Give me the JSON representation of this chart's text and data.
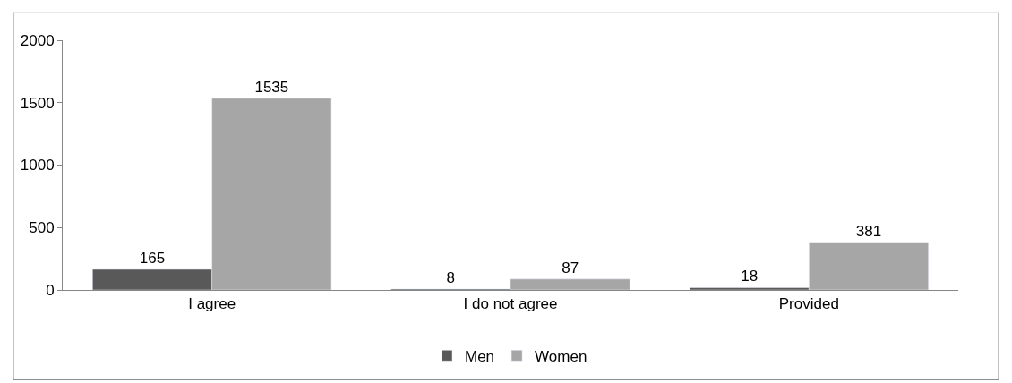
{
  "chart_data": {
    "type": "bar",
    "categories": [
      "I agree",
      "I do not agree",
      "Provided"
    ],
    "series": [
      {
        "name": "Men",
        "color": "#595959",
        "values": [
          165,
          8,
          18
        ]
      },
      {
        "name": "Women",
        "color": "#a6a6a6",
        "values": [
          1535,
          87,
          381
        ]
      }
    ],
    "ylim": [
      0,
      2000
    ],
    "yticks": [
      0,
      500,
      1000,
      1500,
      2000
    ],
    "legend": "bottom",
    "data_labels": true
  }
}
